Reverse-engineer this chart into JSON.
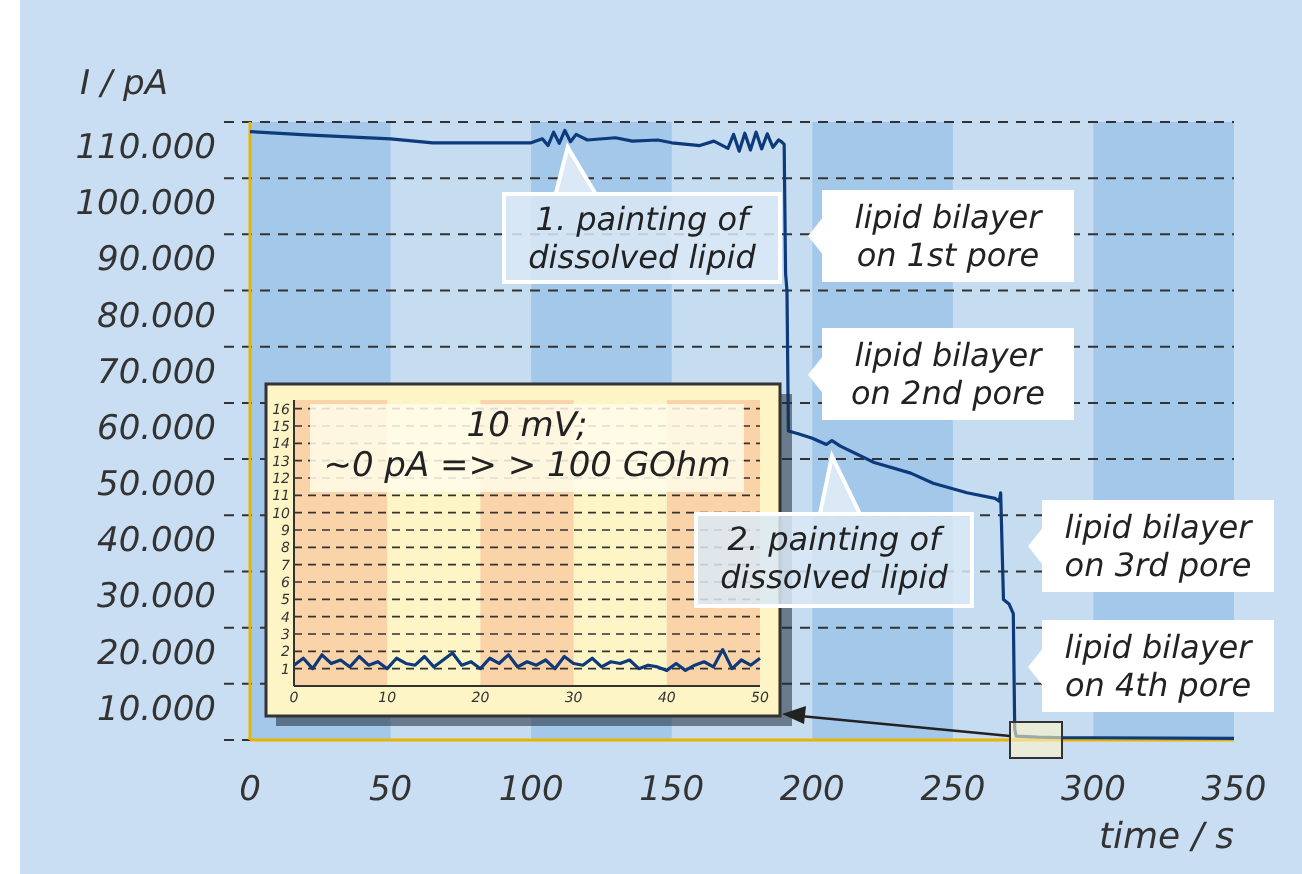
{
  "chart_data": [
    {
      "type": "line",
      "xlabel": "time / s",
      "ylabel": "I / pA",
      "xlim": [
        0,
        350
      ],
      "xticks": [
        0,
        50,
        100,
        150,
        200,
        250,
        300,
        350
      ],
      "ylim": [
        0,
        110000
      ],
      "yticks": [
        {
          "value": 0,
          "label": null
        },
        {
          "value": 10000,
          "label": "10.000"
        },
        {
          "value": 20000,
          "label": "20.000"
        },
        {
          "value": 30000,
          "label": "30.000"
        },
        {
          "value": 40000,
          "label": "40.000"
        },
        {
          "value": 50000,
          "label": "50.000"
        },
        {
          "value": 60000,
          "label": "60.000"
        },
        {
          "value": 70000,
          "label": "70.000"
        },
        {
          "value": 80000,
          "label": "80.000"
        },
        {
          "value": 90000,
          "label": "90.000"
        },
        {
          "value": 100000,
          "label": "100.000"
        },
        {
          "value": 110000,
          "label": "110.000"
        }
      ],
      "grid": "y",
      "bands": [
        {
          "axis": "x",
          "from": 0,
          "to": 50,
          "color": "#a3c8ea"
        },
        {
          "axis": "x",
          "from": 100,
          "to": 150,
          "color": "#a3c8ea"
        },
        {
          "axis": "x",
          "from": 200,
          "to": 250,
          "color": "#a3c8ea"
        },
        {
          "axis": "x",
          "from": 300,
          "to": 350,
          "color": "#a3c8ea"
        }
      ],
      "series": [
        {
          "color": "#0d3a7a",
          "x": [
            0,
            20,
            50,
            65,
            100,
            104,
            106,
            108,
            110,
            112,
            114,
            116,
            120,
            130,
            136,
            145,
            150,
            160,
            165,
            170,
            172,
            174,
            176,
            178,
            180,
            182,
            184,
            186,
            188,
            189,
            190,
            190.5,
            191,
            191.5,
            195,
            200,
            205,
            207,
            210,
            222,
            235,
            243,
            255,
            265,
            266.5,
            267,
            268,
            270,
            271.5,
            272,
            272.5,
            280,
            290,
            300,
            350
          ],
          "values": [
            108300,
            107700,
            107000,
            106300,
            106300,
            107000,
            105800,
            108200,
            106200,
            108500,
            106500,
            107800,
            106800,
            107200,
            106600,
            106800,
            106300,
            105800,
            106600,
            105300,
            107800,
            104800,
            108000,
            105000,
            108200,
            105200,
            107900,
            105500,
            106800,
            106500,
            106000,
            83000,
            80000,
            55000,
            54500,
            53700,
            52600,
            53300,
            52300,
            49400,
            47500,
            45700,
            44000,
            43000,
            42500,
            44000,
            25000,
            24200,
            22500,
            2000,
            700,
            500,
            400,
            400,
            300
          ]
        }
      ],
      "annotations": [
        {
          "text": "1. painting of\ndissolved lipid",
          "x": 113,
          "y": 108000
        },
        {
          "text": "lipid bilayer\non 1st pore",
          "x": 190,
          "y": 89700
        },
        {
          "text": "lipid bilayer\non 2nd pore",
          "x": 191,
          "y": 65000
        },
        {
          "text": "2. painting of\ndissolved lipid",
          "x": 207,
          "y": 53000
        },
        {
          "text": "lipid bilayer\non 3rd pore",
          "x": 267,
          "y": 34500
        },
        {
          "text": "lipid bilayer\non 4th pore",
          "x": 272,
          "y": 13000
        }
      ]
    },
    {
      "type": "line",
      "title": "10 mV;\n~0 pA => > 100 GOhm",
      "xlim": [
        0,
        50
      ],
      "xticks": [
        0,
        10,
        20,
        30,
        40,
        50
      ],
      "ylim": [
        0,
        16.5
      ],
      "yticks": [
        1,
        2,
        3,
        4,
        5,
        6,
        7,
        8,
        9,
        10,
        11,
        12,
        13,
        14,
        15,
        16
      ],
      "grid": "y",
      "bands": [
        {
          "axis": "x",
          "from": 0,
          "to": 10,
          "color": "#fbd3a8"
        },
        {
          "axis": "x",
          "from": 20,
          "to": 30,
          "color": "#fbd3a8"
        },
        {
          "axis": "x",
          "from": 40,
          "to": 50,
          "color": "#fbd3a8"
        }
      ],
      "series": [
        {
          "color": "#0d3a7a",
          "x": [
            0,
            1,
            2,
            3,
            4,
            5,
            6,
            7,
            8,
            9,
            10,
            11,
            12,
            13,
            14,
            15,
            16,
            17,
            18,
            19,
            20,
            21,
            22,
            23,
            24,
            25,
            26,
            27,
            28,
            29,
            30,
            31,
            32,
            33,
            34,
            35,
            36,
            37,
            38,
            39,
            40,
            41,
            42,
            43,
            44,
            45,
            46,
            47,
            48,
            49,
            50
          ],
          "values": [
            1.2,
            1.6,
            1.0,
            1.8,
            1.3,
            1.5,
            1.1,
            1.7,
            1.2,
            1.4,
            1.0,
            1.6,
            1.3,
            1.2,
            1.7,
            1.1,
            1.5,
            1.9,
            1.2,
            1.4,
            1.0,
            1.6,
            1.3,
            1.8,
            1.1,
            1.4,
            1.2,
            1.5,
            1.0,
            1.7,
            1.3,
            1.2,
            1.6,
            1.1,
            1.4,
            1.3,
            1.5,
            1.0,
            1.2,
            1.1,
            0.9,
            1.3,
            0.9,
            1.2,
            1.4,
            1.1,
            2.1,
            1.0,
            1.5,
            1.2,
            1.6
          ]
        }
      ]
    }
  ]
}
